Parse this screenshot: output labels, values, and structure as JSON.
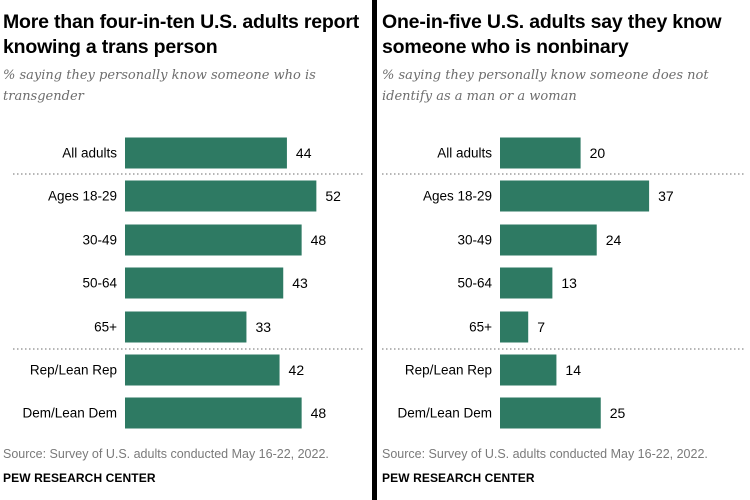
{
  "colors": {
    "bar": "#2e7a63",
    "separator": "#8a8a8a",
    "text": "#000000",
    "subtitle": "#6d6d6d",
    "source": "#7a7a7a"
  },
  "source": "Source: Survey of U.S. adults conducted May 16-22, 2022.",
  "org": "PEW RESEARCH CENTER",
  "chart_data": [
    {
      "type": "bar",
      "orientation": "horizontal",
      "title": "More than four-in-ten U.S. adults report knowing a trans person",
      "subtitle": "% saying they personally know someone who is transgender",
      "categories": [
        "All adults",
        "Ages 18-29",
        "30-49",
        "50-64",
        "65+",
        "Rep/Lean Rep",
        "Dem/Lean Dem"
      ],
      "values": [
        44,
        52,
        48,
        43,
        33,
        42,
        48
      ],
      "data_labels": [
        "44",
        "52",
        "48",
        "43",
        "33",
        "42",
        "48"
      ],
      "groups": [
        [
          "All adults"
        ],
        [
          "Ages 18-29",
          "30-49",
          "50-64",
          "65+"
        ],
        [
          "Rep/Lean Rep",
          "Dem/Lean Dem"
        ]
      ],
      "grid": false
    },
    {
      "type": "bar",
      "orientation": "horizontal",
      "title": "One-in-five U.S. adults say they know someone who is nonbinary",
      "subtitle": "% saying they personally know someone does not identify as a man or a woman",
      "categories": [
        "All adults",
        "Ages 18-29",
        "30-49",
        "50-64",
        "65+",
        "Rep/Lean Rep",
        "Dem/Lean Dem"
      ],
      "values": [
        20,
        37,
        24,
        13,
        7,
        14,
        25
      ],
      "data_labels": [
        "20",
        "37",
        "24",
        "13",
        "7",
        "14",
        "25"
      ],
      "groups": [
        [
          "All adults"
        ],
        [
          "Ages 18-29",
          "30-49",
          "50-64",
          "65+"
        ],
        [
          "Rep/Lean Rep",
          "Dem/Lean Dem"
        ]
      ],
      "grid": false
    }
  ]
}
